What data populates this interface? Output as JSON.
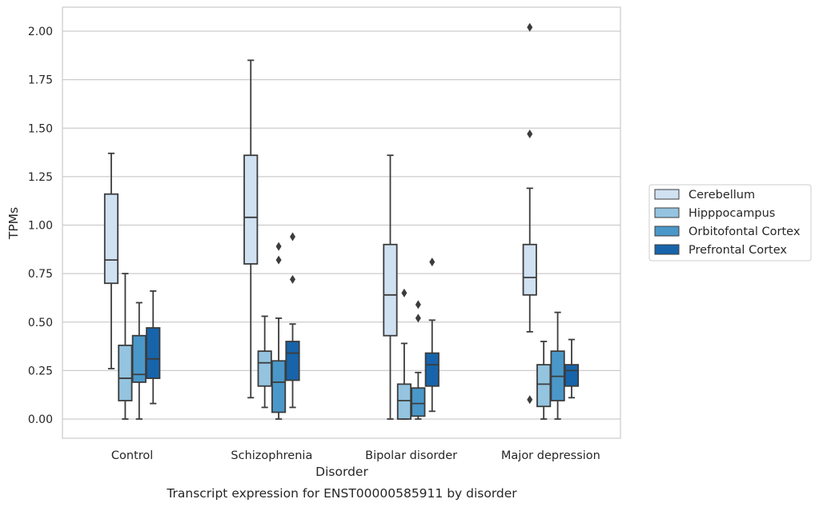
{
  "chart_data": {
    "type": "box",
    "caption": "Transcript expression for ENST00000585911 by disorder",
    "xlabel": "Disorder",
    "ylabel": "TPMs",
    "ylim": [
      -0.1,
      2.12
    ],
    "yticks": [
      "0.00",
      "0.25",
      "0.50",
      "0.75",
      "1.00",
      "1.25",
      "1.50",
      "1.75",
      "2.00"
    ],
    "categories": [
      "Control",
      "Schizophrenia",
      "Bipolar disorder",
      "Major depression"
    ],
    "grid": "horizontal",
    "legend_position": "right",
    "series": [
      {
        "name": "Cerebellum",
        "color": "#d0e1f2",
        "boxes": [
          {
            "whislo": 0.26,
            "q1": 0.7,
            "med": 0.82,
            "q3": 1.16,
            "whishi": 1.37,
            "fliers": []
          },
          {
            "whislo": 0.11,
            "q1": 0.8,
            "med": 1.04,
            "q3": 1.36,
            "whishi": 1.85,
            "fliers": []
          },
          {
            "whislo": 0.0,
            "q1": 0.43,
            "med": 0.64,
            "q3": 0.9,
            "whishi": 1.36,
            "fliers": []
          },
          {
            "whislo": 0.45,
            "q1": 0.64,
            "med": 0.73,
            "q3": 0.9,
            "whishi": 1.19,
            "fliers": [
              0.1,
              1.47,
              2.02
            ]
          }
        ]
      },
      {
        "name": "Hipppocampus",
        "color": "#94c4df",
        "boxes": [
          {
            "whislo": 0.0,
            "q1": 0.095,
            "med": 0.21,
            "q3": 0.38,
            "whishi": 0.75,
            "fliers": []
          },
          {
            "whislo": 0.06,
            "q1": 0.17,
            "med": 0.29,
            "q3": 0.35,
            "whishi": 0.53,
            "fliers": []
          },
          {
            "whislo": 0.0,
            "q1": 0.0,
            "med": 0.095,
            "q3": 0.18,
            "whishi": 0.39,
            "fliers": [
              0.65
            ]
          },
          {
            "whislo": 0.0,
            "q1": 0.065,
            "med": 0.18,
            "q3": 0.28,
            "whishi": 0.4,
            "fliers": []
          }
        ]
      },
      {
        "name": "Orbitofontal Cortex",
        "color": "#4a98c9",
        "boxes": [
          {
            "whislo": 0.0,
            "q1": 0.19,
            "med": 0.23,
            "q3": 0.43,
            "whishi": 0.6,
            "fliers": []
          },
          {
            "whislo": 0.0,
            "q1": 0.035,
            "med": 0.19,
            "q3": 0.3,
            "whishi": 0.52,
            "fliers": [
              0.82,
              0.89
            ]
          },
          {
            "whislo": 0.0,
            "q1": 0.015,
            "med": 0.08,
            "q3": 0.16,
            "whishi": 0.24,
            "fliers": [
              0.52,
              0.59
            ]
          },
          {
            "whislo": 0.0,
            "q1": 0.095,
            "med": 0.22,
            "q3": 0.35,
            "whishi": 0.55,
            "fliers": []
          }
        ]
      },
      {
        "name": "Prefrontal Cortex",
        "color": "#1764ab",
        "boxes": [
          {
            "whislo": 0.08,
            "q1": 0.21,
            "med": 0.31,
            "q3": 0.47,
            "whishi": 0.66,
            "fliers": []
          },
          {
            "whislo": 0.06,
            "q1": 0.2,
            "med": 0.34,
            "q3": 0.4,
            "whishi": 0.49,
            "fliers": [
              0.72,
              0.94
            ]
          },
          {
            "whislo": 0.04,
            "q1": 0.17,
            "med": 0.28,
            "q3": 0.34,
            "whishi": 0.51,
            "fliers": [
              0.81
            ]
          },
          {
            "whislo": 0.11,
            "q1": 0.17,
            "med": 0.25,
            "q3": 0.28,
            "whishi": 0.41,
            "fliers": []
          }
        ]
      }
    ]
  }
}
